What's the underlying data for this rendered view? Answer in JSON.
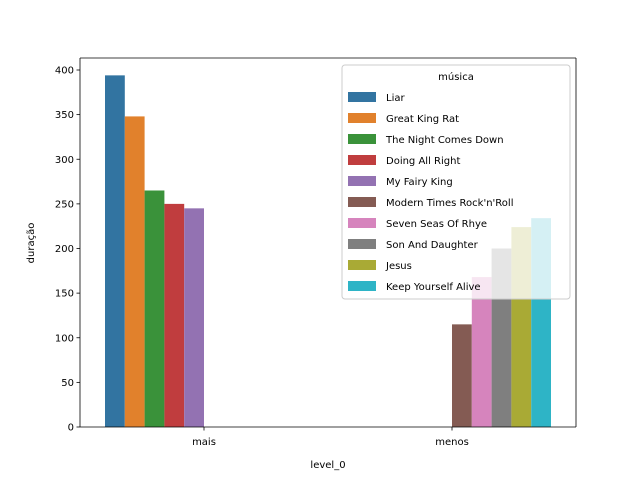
{
  "chart_data": {
    "type": "bar",
    "title": "",
    "xlabel": "level_0",
    "ylabel": "duração",
    "ylim": [
      0,
      400
    ],
    "yticks": [
      0,
      50,
      100,
      150,
      200,
      250,
      300,
      350,
      400
    ],
    "categories": [
      "mais",
      "menos"
    ],
    "grid": false,
    "legend": {
      "title": "música",
      "placement": "top-right"
    },
    "series": [
      {
        "name": "Liar",
        "color": "#3274a1",
        "values": [
          394,
          null
        ]
      },
      {
        "name": "Great King Rat",
        "color": "#e1812c",
        "values": [
          348,
          null
        ]
      },
      {
        "name": "The Night Comes Down",
        "color": "#3a923a",
        "values": [
          265,
          null
        ]
      },
      {
        "name": "Doing All Right",
        "color": "#c03d3e",
        "values": [
          250,
          null
        ]
      },
      {
        "name": "My Fairy King",
        "color": "#9372b2",
        "values": [
          245,
          null
        ]
      },
      {
        "name": "Modern Times Rock'n'Roll",
        "color": "#845b53",
        "values": [
          null,
          115
        ]
      },
      {
        "name": "Seven Seas Of Rhye",
        "color": "#d684bd",
        "values": [
          null,
          168
        ]
      },
      {
        "name": "Son And Daughter",
        "color": "#7f7f7f",
        "values": [
          null,
          200
        ]
      },
      {
        "name": "Jesus",
        "color": "#a9aa35",
        "values": [
          null,
          224
        ]
      },
      {
        "name": "Keep Yourself Alive",
        "color": "#2eb4c6",
        "values": [
          null,
          234
        ]
      }
    ]
  }
}
